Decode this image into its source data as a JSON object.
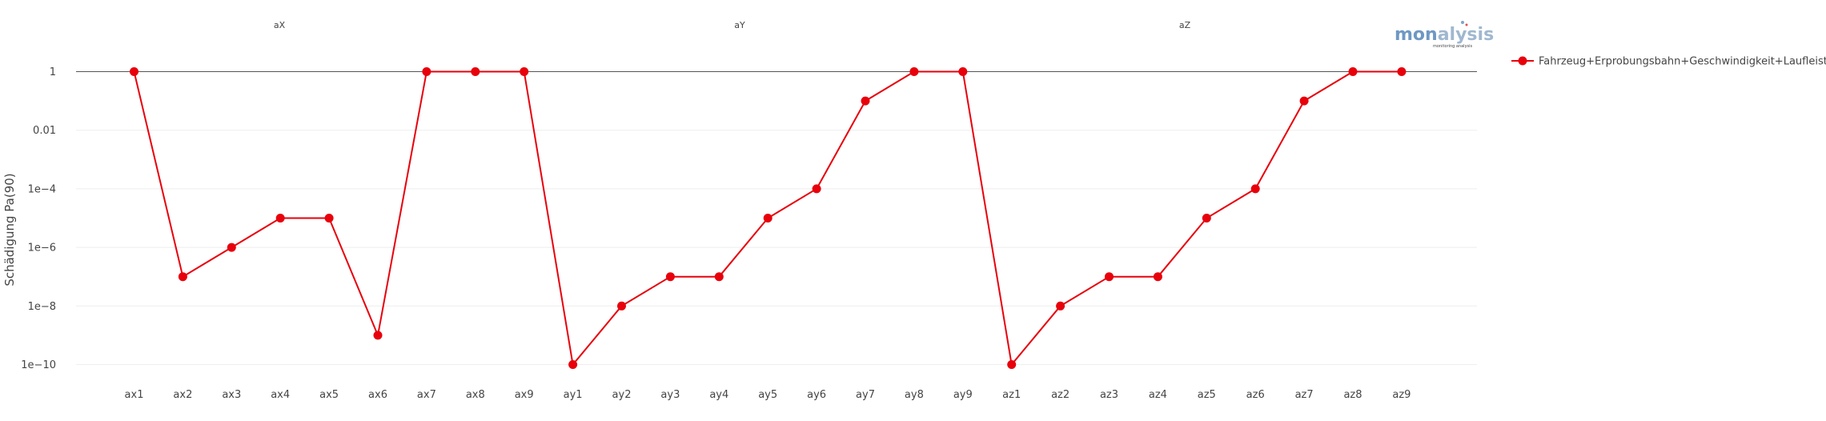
{
  "chart_data": {
    "type": "line",
    "ylabel": "Schädigung Pa(90)",
    "yscale": "log",
    "ylim": [
      3e-11,
      20
    ],
    "yticks": [
      {
        "value": 1,
        "label": "1"
      },
      {
        "value": 0.01,
        "label": "0.01"
      },
      {
        "value": 0.0001,
        "label": "1e−4"
      },
      {
        "value": 1e-06,
        "label": "1e−6"
      },
      {
        "value": 1e-08,
        "label": "1e−8"
      },
      {
        "value": 1e-10,
        "label": "1e−10"
      }
    ],
    "group_labels": [
      {
        "label": "aX",
        "center_after": "ax5"
      },
      {
        "label": "aY",
        "center_after": "ay5"
      },
      {
        "label": "aZ",
        "center_after": "az4"
      }
    ],
    "categories": [
      "ax1",
      "ax2",
      "ax3",
      "ax4",
      "ax5",
      "ax6",
      "ax7",
      "ax8",
      "ax9",
      "ay1",
      "ay2",
      "ay3",
      "ay4",
      "ay5",
      "ay6",
      "ay7",
      "ay8",
      "ay9",
      "az1",
      "az2",
      "az3",
      "az4",
      "az5",
      "az6",
      "az7",
      "az8",
      "az9"
    ],
    "series": [
      {
        "name": "Fahrzeug+Erprobungsbahn+Geschwindigkeit+Laufleistung",
        "color": "#e8000b",
        "values": [
          1,
          1e-07,
          1e-06,
          1e-05,
          1e-05,
          1e-09,
          1,
          1,
          1,
          1e-10,
          1e-08,
          1e-07,
          1e-07,
          1e-05,
          0.0001,
          0.1,
          1,
          1,
          1e-10,
          1e-08,
          1e-07,
          1e-07,
          1e-05,
          0.0001,
          0.1,
          1,
          1
        ]
      }
    ],
    "grid": true,
    "legend_position": "right"
  },
  "logo": {
    "text_part1": "mon",
    "text_part2": "alysis",
    "subtext": "monitoring analysis"
  }
}
